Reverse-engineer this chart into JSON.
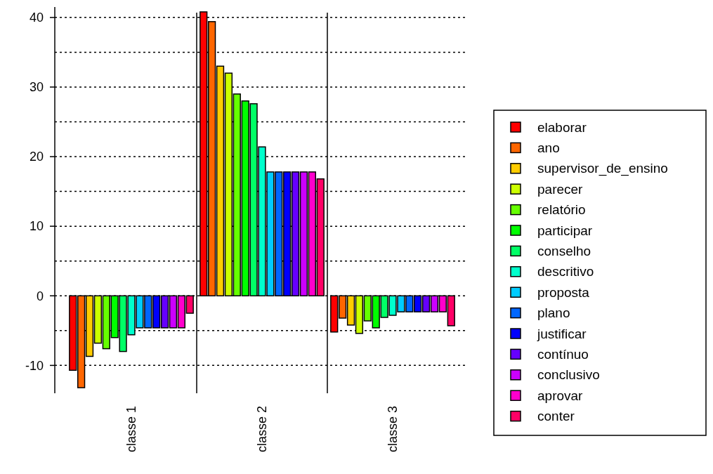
{
  "chart_data": {
    "type": "bar",
    "categories": [
      "classe 1",
      "classe 2",
      "classe 3"
    ],
    "series": [
      {
        "name": "elaborar",
        "color": "#ff0000",
        "values": [
          -10.7,
          40.8,
          -5.2
        ]
      },
      {
        "name": "ano",
        "color": "#ff6600",
        "values": [
          -13.2,
          39.4,
          -3.2
        ]
      },
      {
        "name": "supervisor_de_ensino",
        "color": "#ffcc00",
        "values": [
          -8.7,
          33.0,
          -4.2
        ]
      },
      {
        "name": "parecer",
        "color": "#ccff00",
        "values": [
          -6.8,
          32.0,
          -5.4
        ]
      },
      {
        "name": "relatório",
        "color": "#66ff00",
        "values": [
          -7.6,
          29.0,
          -3.6
        ]
      },
      {
        "name": "participar",
        "color": "#00ff00",
        "values": [
          -6.0,
          28.0,
          -4.6
        ]
      },
      {
        "name": "conselho",
        "color": "#00ff66",
        "values": [
          -8.0,
          27.6,
          -3.1
        ]
      },
      {
        "name": "descritivo",
        "color": "#00ffcc",
        "values": [
          -5.6,
          21.4,
          -2.8
        ]
      },
      {
        "name": "proposta",
        "color": "#00ccff",
        "values": [
          -4.6,
          17.8,
          -2.3
        ]
      },
      {
        "name": "plano",
        "color": "#0066ff",
        "values": [
          -4.6,
          17.8,
          -2.3
        ]
      },
      {
        "name": "justificar",
        "color": "#0000ff",
        "values": [
          -4.6,
          17.8,
          -2.3
        ]
      },
      {
        "name": "contínuo",
        "color": "#6600ff",
        "values": [
          -4.6,
          17.8,
          -2.3
        ]
      },
      {
        "name": "conclusivo",
        "color": "#cc00ff",
        "values": [
          -4.6,
          17.8,
          -2.3
        ]
      },
      {
        "name": "aprovar",
        "color": "#ff00cc",
        "values": [
          -4.6,
          17.8,
          -2.3
        ]
      },
      {
        "name": "conter",
        "color": "#ff0066",
        "values": [
          -2.5,
          16.8,
          -4.3
        ]
      }
    ],
    "ylim": [
      -14,
      41.5
    ],
    "yticks": [
      -10,
      {
        "value": -5,
        "label": null
      },
      0,
      {
        "value": 5,
        "label": null
      },
      10,
      {
        "value": 15,
        "label": null
      },
      20,
      {
        "value": 25,
        "label": null
      },
      30,
      {
        "value": 35,
        "label": null
      },
      40
    ],
    "grid": "y",
    "legend": "right"
  }
}
